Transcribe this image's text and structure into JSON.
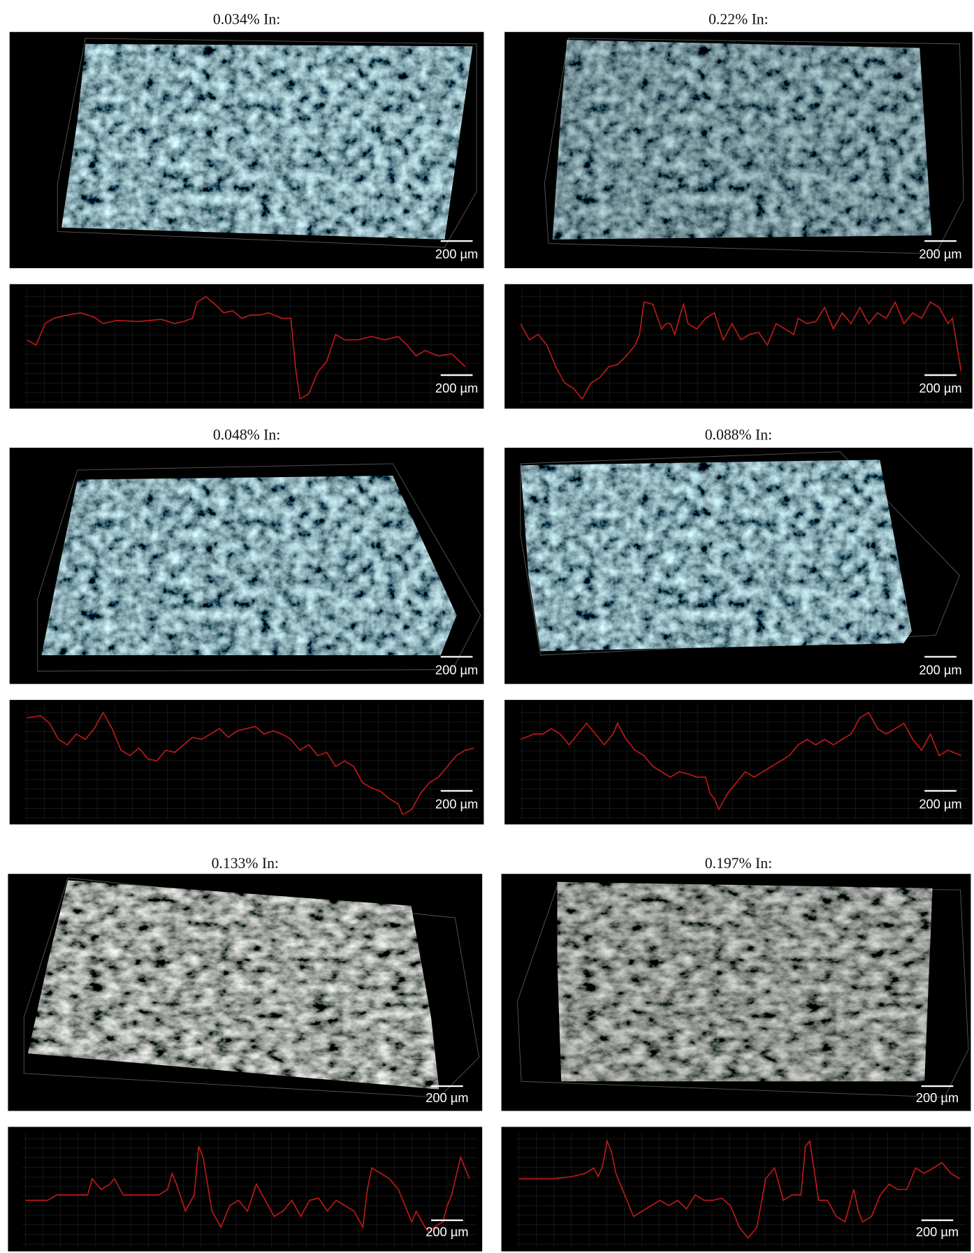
{
  "panels": [
    {
      "title": "0.034% In:",
      "image_scale": "200 µm",
      "profile_scale": "200 µm"
    },
    {
      "title": "0.22% In:",
      "image_scale": "200 µm",
      "profile_scale": "200 µm"
    },
    {
      "title": "0.048% In:",
      "image_scale": "200 µm",
      "profile_scale": "200 µm"
    },
    {
      "title": "0.088% In:",
      "image_scale": "200 µm",
      "profile_scale": "200 µm"
    },
    {
      "title": "0.133% In:",
      "image_scale": "200 µm",
      "profile_scale": "200 µm"
    },
    {
      "title": "0.197% In:",
      "image_scale": "200 µm",
      "profile_scale": "200 µm"
    }
  ]
}
